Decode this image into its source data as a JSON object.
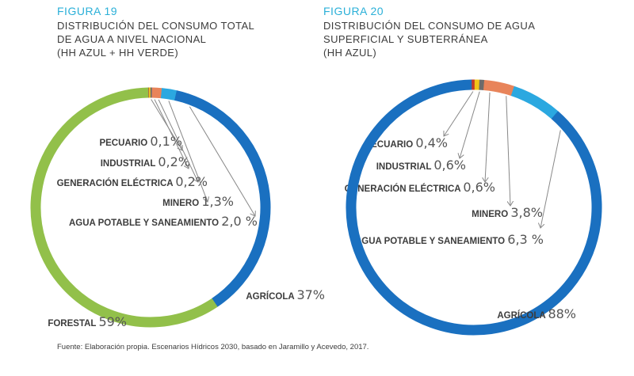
{
  "colors": {
    "accent": "#2bb0d8",
    "agricola": "#1a70c0",
    "forestal": "#92c04a",
    "pecuario": "#c0392b",
    "industrial": "#f0c419",
    "generacion": "#6d6b6a",
    "minero": "#e8845a",
    "agua_potable": "#2ba8e0",
    "text": "#3c3c3c",
    "arrow": "#888888"
  },
  "figures": [
    {
      "number": "FIGURA 19",
      "title": "DISTRIBUCIÓN DEL CONSUMO TOTAL\nDE AGUA A NIVEL NACIONAL\n(HH AZUL + HH VERDE)"
    },
    {
      "number": "FIGURA 20",
      "title": "DISTRIBUCIÓN DEL CONSUMO DE AGUA\nSUPERFICIAL Y SUBTERRÁNEA\n(HH AZUL)"
    }
  ],
  "chart_data": [
    {
      "type": "pie",
      "title": "DISTRIBUCIÓN DEL CONSUMO TOTAL DE AGUA A NIVEL NACIONAL (HH AZUL + HH VERDE)",
      "slices": [
        {
          "label": "PECUARIO",
          "value_label": "0,1%",
          "value": 0.1,
          "color": "#c0392b"
        },
        {
          "label": "INDUSTRIAL",
          "value_label": "0,2%",
          "value": 0.2,
          "color": "#f0c419"
        },
        {
          "label": "GENERACIÓN ELÉCTRICA",
          "value_label": "0,2%",
          "value": 0.2,
          "color": "#6d6b6a"
        },
        {
          "label": "MINERO",
          "value_label": "1,3%",
          "value": 1.3,
          "color": "#e8845a"
        },
        {
          "label": "AGUA POTABLE Y SANEAMIENTO",
          "value_label": "2,0 %",
          "value": 2.0,
          "color": "#2ba8e0"
        },
        {
          "label": "AGRÍCOLA",
          "value_label": "37%",
          "value": 37,
          "color": "#1a70c0"
        },
        {
          "label": "FORESTAL",
          "value_label": "59%",
          "value": 59,
          "color": "#92c04a"
        }
      ]
    },
    {
      "type": "pie",
      "title": "DISTRIBUCIÓN DEL CONSUMO DE AGUA SUPERFICIAL Y SUBTERRÁNEA (HH AZUL)",
      "slices": [
        {
          "label": "PECUARIO",
          "value_label": "0,4%",
          "value": 0.4,
          "color": "#c0392b"
        },
        {
          "label": "INDUSTRIAL",
          "value_label": "0,6%",
          "value": 0.6,
          "color": "#f0c419"
        },
        {
          "label": "GENERACIÓN ELÉCTRICA",
          "value_label": "0,6%",
          "value": 0.6,
          "color": "#6d6b6a"
        },
        {
          "label": "MINERO",
          "value_label": "3,8%",
          "value": 3.8,
          "color": "#e8845a"
        },
        {
          "label": "AGUA POTABLE Y SANEAMIENTO",
          "value_label": "6,3 %",
          "value": 6.3,
          "color": "#2ba8e0"
        },
        {
          "label": "AGRÍCOLA",
          "value_label": "88%",
          "value": 88,
          "color": "#1a70c0"
        }
      ]
    }
  ],
  "source": "Fuente: Elaboración propia. Escenarios Hídricos 2030, basado en Jaramillo y Acevedo, 2017."
}
